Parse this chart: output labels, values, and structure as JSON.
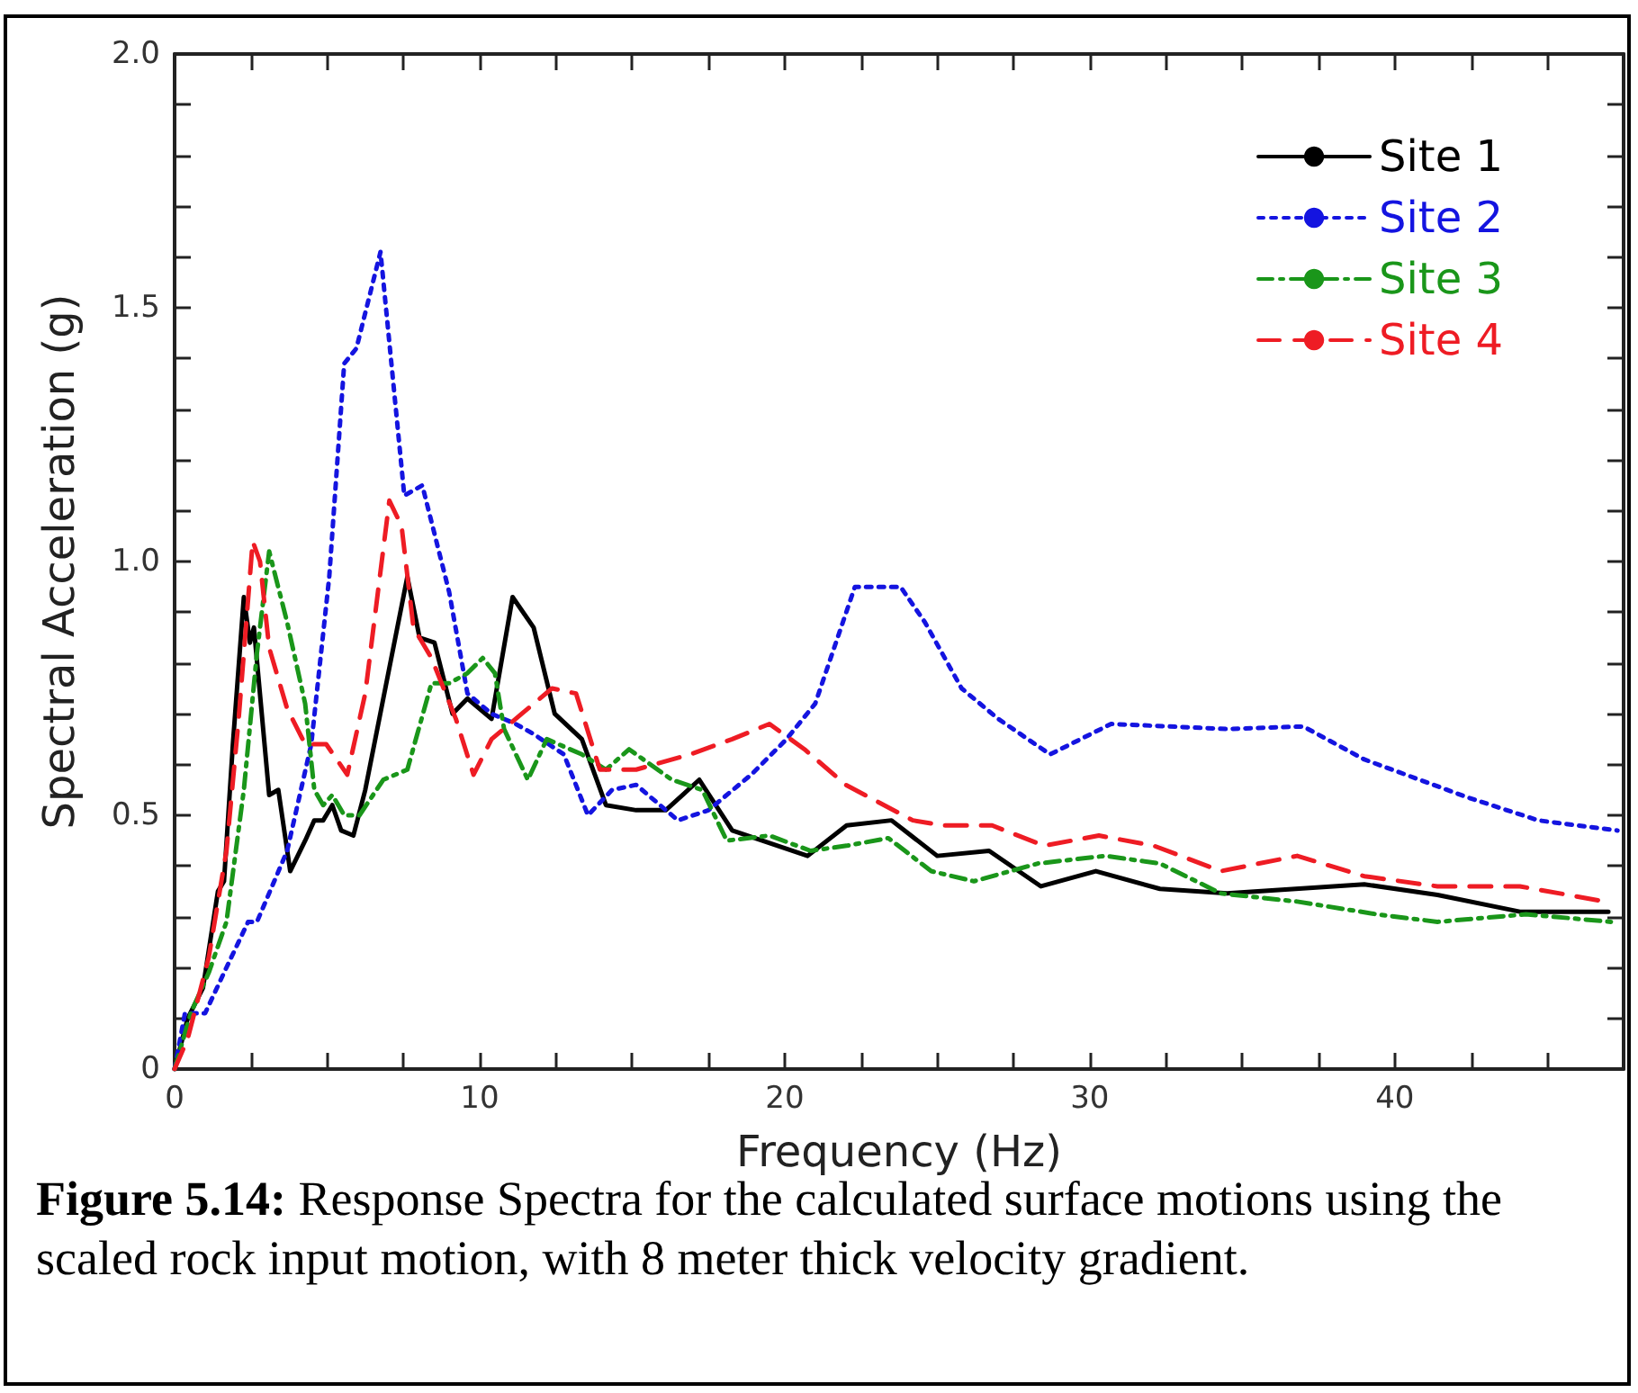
{
  "chart_data": {
    "type": "line",
    "xlabel": "Frequency (Hz)",
    "ylabel": "Spectral Acceleration (g)",
    "annotations": [
      "Figure 5.14: Response Spectra for the calculated surface motions using the scaled rock input motion, with 8 meter thick velocity gradient."
    ],
    "xlim": [
      0,
      47.5
    ],
    "ylim": [
      0,
      2
    ],
    "xticks": [
      0,
      {
        "value": 2.5,
        "label": null
      },
      {
        "value": 5,
        "label": null
      },
      {
        "value": 7.5,
        "label": null
      },
      10,
      {
        "value": 12.5,
        "label": null
      },
      {
        "value": 15,
        "label": null
      },
      {
        "value": 17.5,
        "label": null
      },
      20,
      {
        "value": 22.5,
        "label": null
      },
      {
        "value": 25,
        "label": null
      },
      {
        "value": 27.5,
        "label": null
      },
      30,
      {
        "value": 32.5,
        "label": null
      },
      {
        "value": 35,
        "label": null
      },
      {
        "value": 37.5,
        "label": null
      },
      40,
      {
        "value": 42.5,
        "label": null
      },
      {
        "value": 45,
        "label": null
      }
    ],
    "yticks": [
      0,
      {
        "value": 0.1,
        "label": null
      },
      {
        "value": 0.2,
        "label": null
      },
      {
        "value": 0.3,
        "label": null
      },
      {
        "value": 0.4,
        "label": null
      },
      0.5,
      {
        "value": 0.6,
        "label": null
      },
      {
        "value": 0.7,
        "label": null
      },
      {
        "value": 0.8,
        "label": null
      },
      {
        "value": 0.9,
        "label": null
      },
      {
        "value": 1,
        "label": "1.0"
      },
      {
        "value": 1.1,
        "label": null
      },
      {
        "value": 1.2,
        "label": null
      },
      {
        "value": 1.3,
        "label": null
      },
      {
        "value": 1.4,
        "label": null
      },
      1.5,
      {
        "value": 1.6,
        "label": null
      },
      {
        "value": 1.7,
        "label": null
      },
      {
        "value": 1.8,
        "label": null
      },
      {
        "value": 1.9,
        "label": null
      },
      {
        "value": 2,
        "label": "2.0"
      }
    ],
    "grid": false,
    "legend": "top right",
    "marker": "none",
    "series": [
      {
        "name": "Site 1",
        "color": "#000000",
        "line_style": "solid",
        "x": [
          0,
          0.43,
          0.93,
          1.42,
          1.62,
          1.91,
          2.27,
          2.47,
          2.6,
          3.1,
          3.4,
          3.79,
          4.28,
          4.58,
          4.87,
          5.17,
          5.46,
          5.86,
          6.25,
          7.63,
          8.03,
          8.52,
          9.11,
          9.6,
          10.39,
          11.08,
          11.77,
          12.46,
          13.35,
          14.14,
          15.13,
          16.1,
          17.2,
          18.28,
          20.75,
          22.03,
          23.5,
          25.0,
          26.7,
          28.4,
          30.2,
          32.3,
          34.5,
          39.0,
          41.4,
          44.1,
          47.0
        ],
        "values": [
          0,
          0.1,
          0.16,
          0.35,
          0.37,
          0.64,
          0.93,
          0.84,
          0.87,
          0.54,
          0.55,
          0.39,
          0.45,
          0.49,
          0.49,
          0.52,
          0.47,
          0.46,
          0.55,
          0.97,
          0.85,
          0.84,
          0.7,
          0.73,
          0.69,
          0.93,
          0.87,
          0.7,
          0.65,
          0.52,
          0.51,
          0.51,
          0.57,
          0.47,
          0.42,
          0.48,
          0.49,
          0.42,
          0.43,
          0.36,
          0.39,
          0.355,
          0.346,
          0.364,
          0.343,
          0.31,
          0.31
        ]
      },
      {
        "name": "Site 2",
        "color": "#1414e0",
        "line_style": "dotted",
        "x": [
          0,
          0.34,
          1.0,
          1.7,
          2.41,
          2.7,
          3.69,
          4.48,
          5.07,
          5.56,
          5.96,
          6.75,
          7.53,
          8.12,
          9.0,
          9.6,
          10.39,
          11.18,
          11.77,
          12.76,
          13.55,
          14.34,
          15.13,
          16.5,
          17.5,
          18.9,
          20.06,
          21.0,
          22.3,
          23.8,
          24.6,
          25.8,
          27.0,
          28.7,
          30.7,
          34.5,
          37.0,
          39.0,
          42.4,
          44.7,
          47.3
        ],
        "values": [
          0,
          0.11,
          0.11,
          0.2,
          0.29,
          0.29,
          0.43,
          0.64,
          0.97,
          1.39,
          1.42,
          1.61,
          1.13,
          1.15,
          0.94,
          0.74,
          0.7,
          0.68,
          0.66,
          0.62,
          0.5,
          0.55,
          0.56,
          0.49,
          0.51,
          0.58,
          0.65,
          0.72,
          0.95,
          0.95,
          0.88,
          0.75,
          0.69,
          0.62,
          0.68,
          0.67,
          0.675,
          0.61,
          0.535,
          0.49,
          0.47
        ]
      },
      {
        "name": "Site 3",
        "color": "#1a961a",
        "line_style": "dashdot",
        "x": [
          0,
          0.53,
          1.12,
          1.7,
          2.27,
          2.7,
          3.1,
          3.69,
          4.28,
          4.58,
          4.87,
          5.17,
          5.56,
          6.06,
          6.84,
          7.63,
          8.42,
          9.0,
          9.6,
          10.1,
          10.5,
          10.8,
          11.58,
          12.2,
          13.35,
          14.14,
          14.9,
          16.3,
          17.3,
          18.1,
          19.5,
          20.85,
          22.03,
          23.4,
          24.8,
          26.2,
          28.3,
          30.5,
          32.3,
          34.3,
          36.8,
          39.4,
          41.4,
          44.3,
          47.1
        ],
        "values": [
          0,
          0.11,
          0.19,
          0.29,
          0.55,
          0.82,
          1.02,
          0.88,
          0.72,
          0.55,
          0.52,
          0.54,
          0.5,
          0.5,
          0.57,
          0.59,
          0.76,
          0.76,
          0.78,
          0.81,
          0.78,
          0.67,
          0.57,
          0.65,
          0.62,
          0.59,
          0.63,
          0.57,
          0.55,
          0.45,
          0.46,
          0.43,
          0.44,
          0.455,
          0.39,
          0.37,
          0.405,
          0.42,
          0.405,
          0.346,
          0.33,
          0.305,
          0.29,
          0.305,
          0.29
        ]
      },
      {
        "name": "Site 4",
        "color": "#ee1c24",
        "line_style": "dashed",
        "x": [
          0,
          0.43,
          1.12,
          1.7,
          2.1,
          2.56,
          2.8,
          3.1,
          3.69,
          4.28,
          4.97,
          5.66,
          6.25,
          7.04,
          7.44,
          7.83,
          8.42,
          9.22,
          9.8,
          10.39,
          11.38,
          12.37,
          13.16,
          13.94,
          15.13,
          16.9,
          18.28,
          19.5,
          20.65,
          22.0,
          24.2,
          25.2,
          26.8,
          28.5,
          30.3,
          32.1,
          34.3,
          36.8,
          39.0,
          41.4,
          44.1,
          46.9
        ],
        "values": [
          0,
          0.06,
          0.22,
          0.43,
          0.69,
          1.04,
          1.0,
          0.83,
          0.71,
          0.64,
          0.64,
          0.58,
          0.74,
          1.12,
          1.07,
          0.87,
          0.81,
          0.69,
          0.58,
          0.65,
          0.7,
          0.75,
          0.74,
          0.59,
          0.59,
          0.62,
          0.65,
          0.68,
          0.63,
          0.56,
          0.49,
          0.48,
          0.48,
          0.44,
          0.46,
          0.44,
          0.39,
          0.42,
          0.38,
          0.36,
          0.36,
          0.33
        ]
      }
    ]
  }
}
